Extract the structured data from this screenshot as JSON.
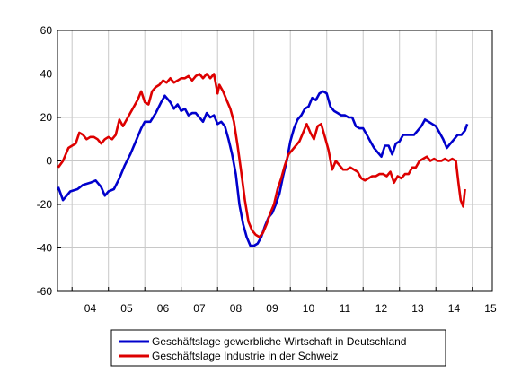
{
  "chart_data": {
    "type": "line",
    "title": "",
    "xlabel": "",
    "ylabel": "",
    "xlim": [
      2003.6,
      2015.55
    ],
    "ylim": [
      -60,
      60
    ],
    "y_ticks": [
      -60,
      -40,
      -20,
      0,
      20,
      40,
      60
    ],
    "x_tick_labels": [
      {
        "label": "04",
        "x": 2004
      },
      {
        "label": "05",
        "x": 2005
      },
      {
        "label": "06",
        "x": 2006
      },
      {
        "label": "07",
        "x": 2007
      },
      {
        "label": "08",
        "x": 2008
      },
      {
        "label": "09",
        "x": 2009
      },
      {
        "label": "10",
        "x": 2010
      },
      {
        "label": "11",
        "x": 2011
      },
      {
        "label": "12",
        "x": 2012
      },
      {
        "label": "13",
        "x": 2013
      },
      {
        "label": "14",
        "x": 2014
      },
      {
        "label": "15",
        "x": 2015
      }
    ],
    "grid": true,
    "legend_position": "bottom",
    "series": [
      {
        "name": "Geschäftslage gewerbliche Wirtschaft in Deutschland",
        "color": "#0000cc",
        "points": [
          [
            2003.62,
            -12
          ],
          [
            2003.75,
            -18
          ],
          [
            2003.95,
            -14
          ],
          [
            2004.15,
            -13
          ],
          [
            2004.3,
            -11
          ],
          [
            2004.5,
            -10
          ],
          [
            2004.65,
            -9
          ],
          [
            2004.8,
            -12
          ],
          [
            2004.9,
            -16
          ],
          [
            2005.0,
            -14
          ],
          [
            2005.15,
            -13
          ],
          [
            2005.3,
            -8
          ],
          [
            2005.45,
            -2
          ],
          [
            2005.6,
            3
          ],
          [
            2005.75,
            9
          ],
          [
            2005.9,
            15
          ],
          [
            2006.0,
            18
          ],
          [
            2006.15,
            18
          ],
          [
            2006.3,
            22
          ],
          [
            2006.45,
            27
          ],
          [
            2006.55,
            30
          ],
          [
            2006.7,
            27
          ],
          [
            2006.8,
            24
          ],
          [
            2006.9,
            26
          ],
          [
            2007.0,
            23
          ],
          [
            2007.1,
            24
          ],
          [
            2007.2,
            21
          ],
          [
            2007.3,
            22
          ],
          [
            2007.4,
            22
          ],
          [
            2007.5,
            20
          ],
          [
            2007.6,
            18
          ],
          [
            2007.7,
            22
          ],
          [
            2007.8,
            20
          ],
          [
            2007.9,
            21
          ],
          [
            2008.0,
            17
          ],
          [
            2008.1,
            18
          ],
          [
            2008.2,
            16
          ],
          [
            2008.3,
            10
          ],
          [
            2008.4,
            3
          ],
          [
            2008.5,
            -6
          ],
          [
            2008.6,
            -20
          ],
          [
            2008.7,
            -29
          ],
          [
            2008.8,
            -35
          ],
          [
            2008.9,
            -39
          ],
          [
            2009.0,
            -39
          ],
          [
            2009.1,
            -38
          ],
          [
            2009.2,
            -35
          ],
          [
            2009.3,
            -30
          ],
          [
            2009.4,
            -26
          ],
          [
            2009.5,
            -24
          ],
          [
            2009.6,
            -20
          ],
          [
            2009.7,
            -15
          ],
          [
            2009.8,
            -7
          ],
          [
            2009.9,
            0
          ],
          [
            2010.0,
            9
          ],
          [
            2010.1,
            15
          ],
          [
            2010.2,
            19
          ],
          [
            2010.3,
            21
          ],
          [
            2010.4,
            24
          ],
          [
            2010.5,
            25
          ],
          [
            2010.6,
            29
          ],
          [
            2010.7,
            28
          ],
          [
            2010.8,
            31
          ],
          [
            2010.9,
            32
          ],
          [
            2011.0,
            31
          ],
          [
            2011.1,
            25
          ],
          [
            2011.2,
            23
          ],
          [
            2011.3,
            22
          ],
          [
            2011.4,
            21
          ],
          [
            2011.5,
            21
          ],
          [
            2011.6,
            20
          ],
          [
            2011.7,
            20
          ],
          [
            2011.8,
            16
          ],
          [
            2011.9,
            15
          ],
          [
            2012.0,
            15
          ],
          [
            2012.1,
            12
          ],
          [
            2012.2,
            9
          ],
          [
            2012.3,
            6
          ],
          [
            2012.4,
            4
          ],
          [
            2012.5,
            2
          ],
          [
            2012.6,
            7
          ],
          [
            2012.7,
            7
          ],
          [
            2012.8,
            3
          ],
          [
            2012.9,
            8
          ],
          [
            2013.0,
            9
          ],
          [
            2013.1,
            12
          ],
          [
            2013.2,
            12
          ],
          [
            2013.3,
            12
          ],
          [
            2013.4,
            12
          ],
          [
            2013.5,
            14
          ],
          [
            2013.6,
            16
          ],
          [
            2013.7,
            19
          ],
          [
            2013.8,
            18
          ],
          [
            2013.9,
            17
          ],
          [
            2014.0,
            16
          ],
          [
            2014.1,
            13
          ],
          [
            2014.2,
            10
          ],
          [
            2014.3,
            6
          ],
          [
            2014.4,
            8
          ],
          [
            2014.5,
            10
          ],
          [
            2014.6,
            12
          ],
          [
            2014.7,
            12
          ],
          [
            2014.8,
            14
          ],
          [
            2014.86,
            17
          ]
        ]
      },
      {
        "name": "Geschäftslage Industrie in der Schweiz",
        "color": "#dd0000",
        "points": [
          [
            2003.62,
            -3
          ],
          [
            2003.75,
            0
          ],
          [
            2003.9,
            6
          ],
          [
            2004.0,
            7
          ],
          [
            2004.1,
            8
          ],
          [
            2004.2,
            13
          ],
          [
            2004.3,
            12
          ],
          [
            2004.4,
            10
          ],
          [
            2004.5,
            11
          ],
          [
            2004.6,
            11
          ],
          [
            2004.7,
            10
          ],
          [
            2004.8,
            8
          ],
          [
            2004.9,
            10
          ],
          [
            2005.0,
            11
          ],
          [
            2005.1,
            10
          ],
          [
            2005.2,
            12
          ],
          [
            2005.3,
            19
          ],
          [
            2005.4,
            16
          ],
          [
            2005.5,
            19
          ],
          [
            2005.6,
            22
          ],
          [
            2005.7,
            25
          ],
          [
            2005.8,
            28
          ],
          [
            2005.9,
            32
          ],
          [
            2006.0,
            27
          ],
          [
            2006.1,
            26
          ],
          [
            2006.2,
            32
          ],
          [
            2006.3,
            34
          ],
          [
            2006.4,
            35
          ],
          [
            2006.5,
            37
          ],
          [
            2006.6,
            36
          ],
          [
            2006.7,
            38
          ],
          [
            2006.8,
            36
          ],
          [
            2006.9,
            37
          ],
          [
            2007.0,
            38
          ],
          [
            2007.1,
            38
          ],
          [
            2007.2,
            39
          ],
          [
            2007.3,
            37
          ],
          [
            2007.4,
            39
          ],
          [
            2007.5,
            40
          ],
          [
            2007.6,
            38
          ],
          [
            2007.7,
            40
          ],
          [
            2007.8,
            38
          ],
          [
            2007.9,
            40
          ],
          [
            2008.0,
            31
          ],
          [
            2008.05,
            35
          ],
          [
            2008.15,
            32
          ],
          [
            2008.25,
            28
          ],
          [
            2008.35,
            24
          ],
          [
            2008.45,
            18
          ],
          [
            2008.55,
            7
          ],
          [
            2008.65,
            -5
          ],
          [
            2008.75,
            -18
          ],
          [
            2008.85,
            -28
          ],
          [
            2008.95,
            -32
          ],
          [
            2009.05,
            -34
          ],
          [
            2009.15,
            -35
          ],
          [
            2009.25,
            -33
          ],
          [
            2009.35,
            -29
          ],
          [
            2009.45,
            -24
          ],
          [
            2009.55,
            -20
          ],
          [
            2009.65,
            -13
          ],
          [
            2009.75,
            -8
          ],
          [
            2009.85,
            -2
          ],
          [
            2009.95,
            3
          ],
          [
            2010.05,
            5
          ],
          [
            2010.15,
            7
          ],
          [
            2010.25,
            9
          ],
          [
            2010.35,
            13
          ],
          [
            2010.45,
            17
          ],
          [
            2010.55,
            13
          ],
          [
            2010.65,
            10
          ],
          [
            2010.75,
            16
          ],
          [
            2010.85,
            17
          ],
          [
            2010.95,
            11
          ],
          [
            2011.05,
            5
          ],
          [
            2011.15,
            -4
          ],
          [
            2011.25,
            0
          ],
          [
            2011.35,
            -2
          ],
          [
            2011.45,
            -4
          ],
          [
            2011.55,
            -4
          ],
          [
            2011.65,
            -3
          ],
          [
            2011.75,
            -4
          ],
          [
            2011.85,
            -5
          ],
          [
            2011.95,
            -8
          ],
          [
            2012.05,
            -9
          ],
          [
            2012.15,
            -8
          ],
          [
            2012.25,
            -7
          ],
          [
            2012.35,
            -7
          ],
          [
            2012.45,
            -6
          ],
          [
            2012.55,
            -6
          ],
          [
            2012.65,
            -7
          ],
          [
            2012.75,
            -5
          ],
          [
            2012.85,
            -10
          ],
          [
            2012.95,
            -7
          ],
          [
            2013.05,
            -8
          ],
          [
            2013.15,
            -6
          ],
          [
            2013.25,
            -6
          ],
          [
            2013.35,
            -3
          ],
          [
            2013.45,
            -3
          ],
          [
            2013.55,
            0
          ],
          [
            2013.65,
            1
          ],
          [
            2013.75,
            2
          ],
          [
            2013.85,
            0
          ],
          [
            2013.95,
            1
          ],
          [
            2014.05,
            0
          ],
          [
            2014.15,
            0
          ],
          [
            2014.25,
            1
          ],
          [
            2014.35,
            0
          ],
          [
            2014.45,
            1
          ],
          [
            2014.55,
            0
          ],
          [
            2014.62,
            -10
          ],
          [
            2014.68,
            -18
          ],
          [
            2014.75,
            -21
          ],
          [
            2014.8,
            -13
          ]
        ]
      }
    ]
  }
}
